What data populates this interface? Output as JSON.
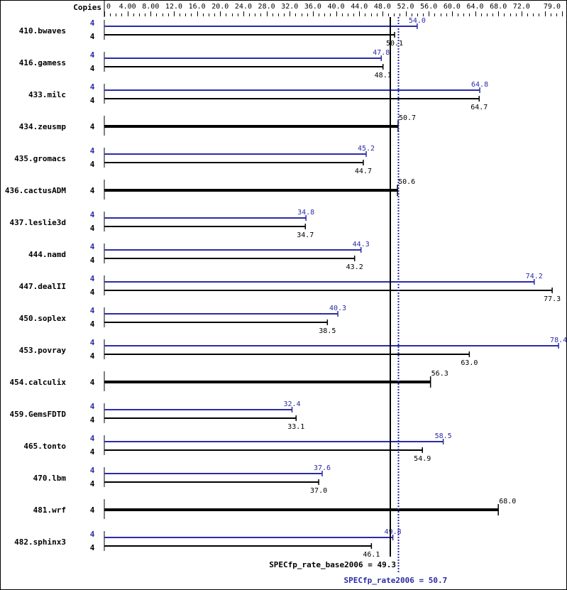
{
  "chart_data": {
    "type": "bar",
    "orientation": "horizontal",
    "title": "",
    "xlabel": "",
    "ylabel": "",
    "header_label": "Copies",
    "xlim": [
      0,
      79.0
    ],
    "tick_labels": [
      "0",
      "4.00",
      "8.00",
      "12.0",
      "16.0",
      "20.0",
      "24.0",
      "28.0",
      "32.0",
      "36.0",
      "40.0",
      "44.0",
      "48.0",
      "52.0",
      "56.0",
      "60.0",
      "64.0",
      "68.0",
      "72.0",
      "79.0"
    ],
    "tick_values": [
      0,
      4,
      8,
      12,
      16,
      20,
      24,
      28,
      32,
      36,
      40,
      44,
      48,
      52,
      56,
      60,
      64,
      68,
      72,
      79
    ],
    "grid": false,
    "legend": "none",
    "colors": {
      "peak": "#2b2ba8",
      "base": "#000000"
    },
    "categories": [
      "410.bwaves",
      "416.gamess",
      "433.milc",
      "434.zeusmp",
      "435.gromacs",
      "436.cactusADM",
      "437.leslie3d",
      "444.namd",
      "447.dealII",
      "450.soplex",
      "453.povray",
      "454.calculix",
      "459.GemsFDTD",
      "465.tonto",
      "470.lbm",
      "481.wrf",
      "482.sphinx3"
    ],
    "series": [
      {
        "name": "peak",
        "copies": [
          4,
          4,
          4,
          null,
          4,
          null,
          4,
          4,
          4,
          4,
          4,
          null,
          4,
          4,
          4,
          null,
          4
        ],
        "values": [
          54.0,
          47.8,
          64.8,
          null,
          45.2,
          null,
          34.8,
          44.3,
          74.2,
          40.3,
          78.4,
          null,
          32.4,
          58.5,
          37.6,
          null,
          49.8
        ]
      },
      {
        "name": "base",
        "copies": [
          4,
          4,
          4,
          4,
          4,
          4,
          4,
          4,
          4,
          4,
          4,
          4,
          4,
          4,
          4,
          4,
          4
        ],
        "values": [
          50.1,
          48.1,
          64.7,
          50.7,
          44.7,
          50.6,
          34.7,
          43.2,
          77.3,
          38.5,
          63.0,
          56.3,
          33.1,
          54.9,
          37.0,
          68.0,
          46.1
        ]
      }
    ],
    "rows": [
      {
        "name": "410.bwaves",
        "peak": {
          "copies": "4",
          "value": 54.0,
          "label": "54.0"
        },
        "base": {
          "copies": "4",
          "value": 50.1,
          "label": "50.1"
        }
      },
      {
        "name": "416.gamess",
        "peak": {
          "copies": "4",
          "value": 47.8,
          "label": "47.8"
        },
        "base": {
          "copies": "4",
          "value": 48.1,
          "label": "48.1"
        }
      },
      {
        "name": "433.milc",
        "peak": {
          "copies": "4",
          "value": 64.8,
          "label": "64.8"
        },
        "base": {
          "copies": "4",
          "value": 64.7,
          "label": "64.7"
        }
      },
      {
        "name": "434.zeusmp",
        "combined": true,
        "base": {
          "copies": "4",
          "value": 50.7,
          "label": "50.7"
        }
      },
      {
        "name": "435.gromacs",
        "peak": {
          "copies": "4",
          "value": 45.2,
          "label": "45.2"
        },
        "base": {
          "copies": "4",
          "value": 44.7,
          "label": "44.7"
        }
      },
      {
        "name": "436.cactusADM",
        "combined": true,
        "base": {
          "copies": "4",
          "value": 50.6,
          "label": "50.6"
        }
      },
      {
        "name": "437.leslie3d",
        "peak": {
          "copies": "4",
          "value": 34.8,
          "label": "34.8"
        },
        "base": {
          "copies": "4",
          "value": 34.7,
          "label": "34.7"
        }
      },
      {
        "name": "444.namd",
        "peak": {
          "copies": "4",
          "value": 44.3,
          "label": "44.3"
        },
        "base": {
          "copies": "4",
          "value": 43.2,
          "label": "43.2"
        }
      },
      {
        "name": "447.dealII",
        "peak": {
          "copies": "4",
          "value": 74.2,
          "label": "74.2"
        },
        "base": {
          "copies": "4",
          "value": 77.3,
          "label": "77.3"
        }
      },
      {
        "name": "450.soplex",
        "peak": {
          "copies": "4",
          "value": 40.3,
          "label": "40.3"
        },
        "base": {
          "copies": "4",
          "value": 38.5,
          "label": "38.5"
        }
      },
      {
        "name": "453.povray",
        "peak": {
          "copies": "4",
          "value": 78.4,
          "label": "78.4"
        },
        "base": {
          "copies": "4",
          "value": 63.0,
          "label": "63.0"
        }
      },
      {
        "name": "454.calculix",
        "combined": true,
        "base": {
          "copies": "4",
          "value": 56.3,
          "label": "56.3"
        }
      },
      {
        "name": "459.GemsFDTD",
        "peak": {
          "copies": "4",
          "value": 32.4,
          "label": "32.4"
        },
        "base": {
          "copies": "4",
          "value": 33.1,
          "label": "33.1"
        }
      },
      {
        "name": "465.tonto",
        "peak": {
          "copies": "4",
          "value": 58.5,
          "label": "58.5"
        },
        "base": {
          "copies": "4",
          "value": 54.9,
          "label": "54.9"
        }
      },
      {
        "name": "470.lbm",
        "peak": {
          "copies": "4",
          "value": 37.6,
          "label": "37.6"
        },
        "base": {
          "copies": "4",
          "value": 37.0,
          "label": "37.0"
        }
      },
      {
        "name": "481.wrf",
        "combined": true,
        "base": {
          "copies": "4",
          "value": 68.0,
          "label": "68.0"
        }
      },
      {
        "name": "482.sphinx3",
        "peak": {
          "copies": "4",
          "value": 49.8,
          "label": "49.8"
        },
        "base": {
          "copies": "4",
          "value": 46.1,
          "label": "46.1"
        }
      }
    ],
    "reference_lines": [
      {
        "name": "base",
        "value": 49.3,
        "style": "solid",
        "color": "#000000",
        "label": "SPECfp_rate_base2006 = 49.3"
      },
      {
        "name": "peak",
        "value": 50.7,
        "style": "dotted",
        "color": "#2b2ba8",
        "label": "SPECfp_rate2006 = 50.7"
      }
    ]
  }
}
